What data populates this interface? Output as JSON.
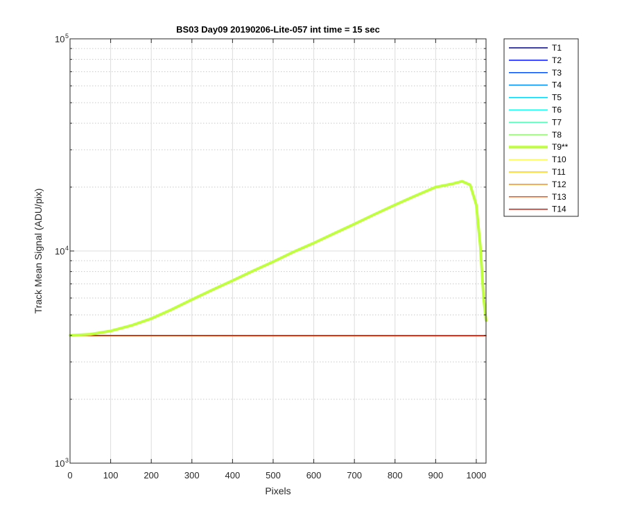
{
  "chart_data": {
    "type": "line",
    "title": "BS03 Day09 20190206-Lite-057 int time = 15 sec",
    "xlabel": "Pixels",
    "ylabel": "Track Mean Signal (ADU/pix)",
    "xlim": [
      0,
      1024
    ],
    "ylim": [
      1000,
      100000
    ],
    "yscale": "log",
    "x_ticks": [
      0,
      100,
      200,
      300,
      400,
      500,
      600,
      700,
      800,
      900,
      1000
    ],
    "y_ticks": [
      {
        "value": 1000,
        "base": "10",
        "exp": "3"
      },
      {
        "value": 10000,
        "base": "10",
        "exp": "4"
      },
      {
        "value": 100000,
        "base": "10",
        "exp": "5"
      }
    ],
    "grid": true,
    "minor_grid": true,
    "legend_position": "outside-top-right",
    "series": [
      {
        "name": "T1",
        "color": "#00008f",
        "width": 1.5,
        "x": [
          0,
          1024
        ],
        "y": [
          4000,
          3990
        ]
      },
      {
        "name": "T2",
        "color": "#0010ff",
        "width": 1.5,
        "x": [
          0,
          1024
        ],
        "y": [
          4000,
          3990
        ]
      },
      {
        "name": "T3",
        "color": "#0050ff",
        "width": 1.5,
        "x": [
          0,
          1024
        ],
        "y": [
          4000,
          3990
        ]
      },
      {
        "name": "T4",
        "color": "#008fff",
        "width": 1.5,
        "x": [
          0,
          1024
        ],
        "y": [
          4000,
          3990
        ]
      },
      {
        "name": "T5",
        "color": "#00cfff",
        "width": 1.5,
        "x": [
          0,
          1024
        ],
        "y": [
          4000,
          3990
        ]
      },
      {
        "name": "T6",
        "color": "#10ffef",
        "width": 1.5,
        "x": [
          0,
          1024
        ],
        "y": [
          4000,
          3990
        ]
      },
      {
        "name": "T7",
        "color": "#50ffaf",
        "width": 1.5,
        "x": [
          0,
          1024
        ],
        "y": [
          4000,
          3990
        ]
      },
      {
        "name": "T8",
        "color": "#8fff70",
        "width": 1.5,
        "x": [
          0,
          1024
        ],
        "y": [
          4000,
          3990
        ]
      },
      {
        "name": "T9**",
        "color": "#bfff3f",
        "width": 4,
        "x": [
          0,
          50,
          100,
          150,
          200,
          250,
          300,
          350,
          400,
          450,
          500,
          550,
          600,
          650,
          700,
          750,
          800,
          850,
          900,
          940,
          965,
          985,
          1000,
          1010,
          1018,
          1024
        ],
        "y": [
          4000,
          4050,
          4200,
          4450,
          4800,
          5300,
          5900,
          6550,
          7250,
          8050,
          8900,
          9900,
          10900,
          12100,
          13400,
          14900,
          16500,
          18200,
          20000,
          20700,
          21300,
          20500,
          16500,
          10500,
          6000,
          4700
        ]
      },
      {
        "name": "T10",
        "color": "#ffff3f",
        "width": 1.5,
        "x": [
          0,
          1024
        ],
        "y": [
          4000,
          3990
        ]
      },
      {
        "name": "T11",
        "color": "#ffcf00",
        "width": 1.5,
        "x": [
          0,
          1024
        ],
        "y": [
          4000,
          3990
        ]
      },
      {
        "name": "T12",
        "color": "#ff8f00",
        "width": 1.5,
        "x": [
          0,
          1024
        ],
        "y": [
          4000,
          3990
        ]
      },
      {
        "name": "T13",
        "color": "#ff5000",
        "width": 1.5,
        "x": [
          0,
          1024
        ],
        "y": [
          4000,
          3990
        ]
      },
      {
        "name": "T14",
        "color": "#ef1000",
        "width": 1.5,
        "x": [
          0,
          1024
        ],
        "y": [
          4000,
          3990
        ]
      }
    ]
  }
}
